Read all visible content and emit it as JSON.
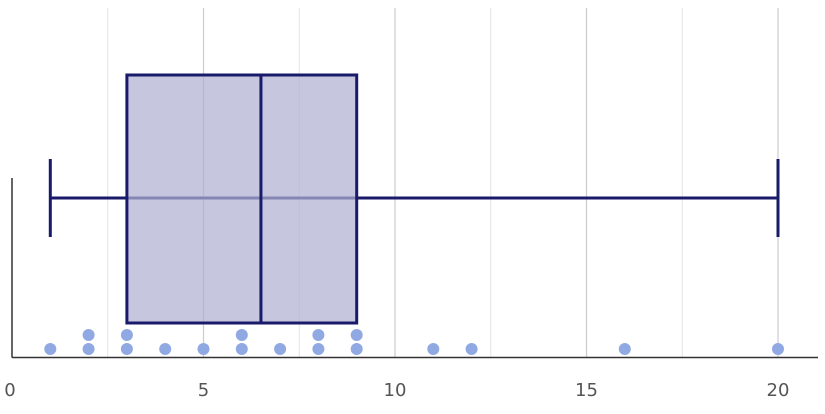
{
  "chart_data": {
    "type": "boxplot",
    "x_ticks": [
      0,
      5,
      10,
      15,
      20
    ],
    "x_tick_labels": [
      "0",
      "5",
      "10",
      "15",
      "20"
    ],
    "xlim": [
      0,
      21
    ],
    "grid": "vertical",
    "box": {
      "whisker_low": 1,
      "q1": 3,
      "median": 6.5,
      "q3": 9,
      "whisker_high": 20
    },
    "points": [
      {
        "x": 1,
        "stack": 0
      },
      {
        "x": 2,
        "stack": 0
      },
      {
        "x": 2,
        "stack": 1
      },
      {
        "x": 3,
        "stack": 0
      },
      {
        "x": 3,
        "stack": 1
      },
      {
        "x": 4,
        "stack": 0
      },
      {
        "x": 5,
        "stack": 0
      },
      {
        "x": 6,
        "stack": 0
      },
      {
        "x": 6,
        "stack": 1
      },
      {
        "x": 7,
        "stack": 0
      },
      {
        "x": 8,
        "stack": 0
      },
      {
        "x": 8,
        "stack": 1
      },
      {
        "x": 9,
        "stack": 0
      },
      {
        "x": 9,
        "stack": 1
      },
      {
        "x": 11,
        "stack": 0
      },
      {
        "x": 12,
        "stack": 0
      },
      {
        "x": 16,
        "stack": 0
      },
      {
        "x": 20,
        "stack": 0
      }
    ],
    "colors": {
      "box_fill": "#b0b0d1",
      "box_stroke": "#1a1a6b",
      "point": "#91a9e3",
      "grid": "#cccccc",
      "grid_minor": "#e3e3e3",
      "axis": "#333333"
    }
  }
}
